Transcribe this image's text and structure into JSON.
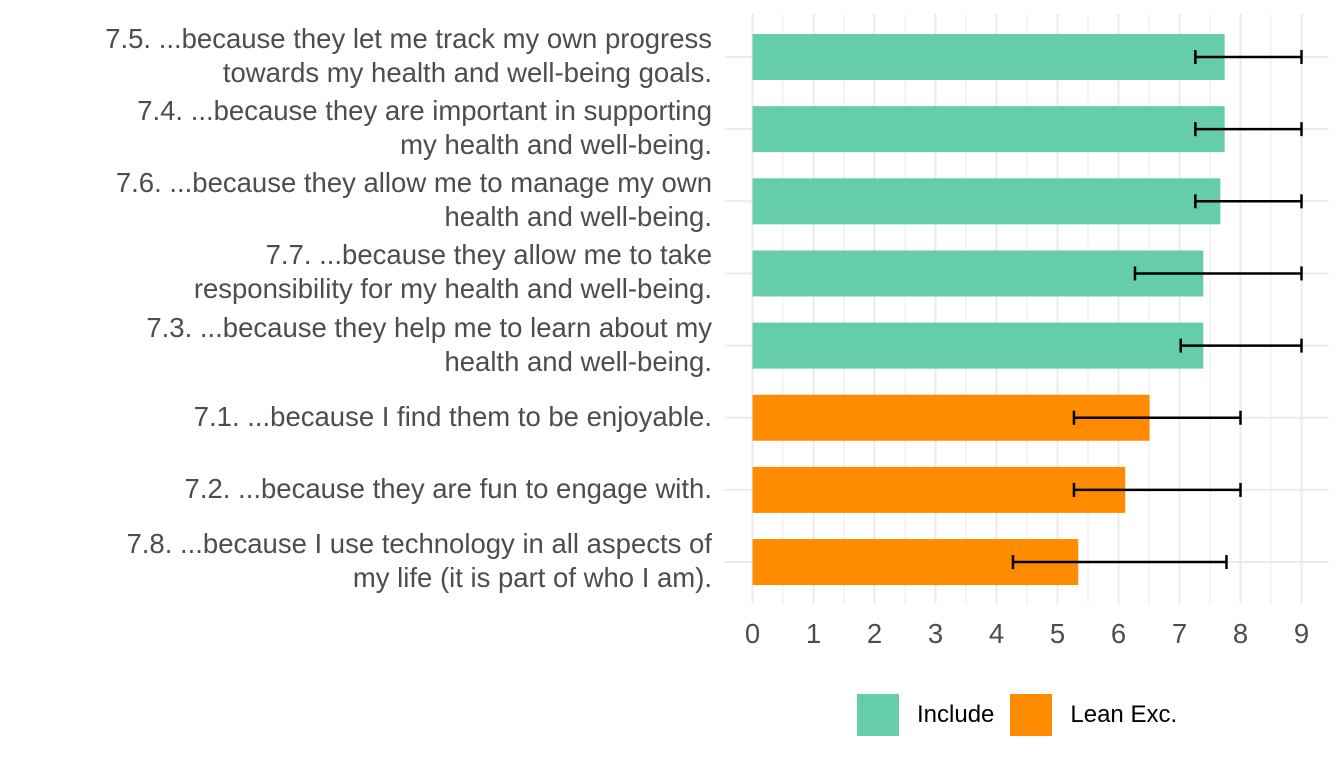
{
  "chart_data": {
    "type": "bar",
    "orientation": "horizontal",
    "title": "",
    "xlabel": "",
    "ylabel": "",
    "xlim": [
      0,
      9
    ],
    "x_ticks": [
      0,
      1,
      2,
      3,
      4,
      5,
      6,
      7,
      8,
      9
    ],
    "grid": true,
    "legend_position": "bottom",
    "legend": [
      {
        "name": "Include",
        "color": "#66CDAA"
      },
      {
        "name": "Lean Exc.",
        "color": "#FF8C00"
      }
    ],
    "categories": [
      {
        "label_lines": [
          "7.5. ...because they let me track my own progress",
          "towards my health and well-being goals."
        ],
        "group": "Include",
        "value": 7.74,
        "error_low": 7.26,
        "error_high": 9.0
      },
      {
        "label_lines": [
          "7.4. ...because they are important in supporting",
          "my health and well-being."
        ],
        "group": "Include",
        "value": 7.74,
        "error_low": 7.26,
        "error_high": 9.0
      },
      {
        "label_lines": [
          "7.6. ...because they allow me to manage my own",
          "health and well-being."
        ],
        "group": "Include",
        "value": 7.67,
        "error_low": 7.26,
        "error_high": 9.0
      },
      {
        "label_lines": [
          "7.7. ...because they allow me to take",
          "responsibility for my health and well-being."
        ],
        "group": "Include",
        "value": 7.39,
        "error_low": 6.27,
        "error_high": 9.0
      },
      {
        "label_lines": [
          "7.3. ...because they help me to learn about my",
          "health and well-being."
        ],
        "group": "Include",
        "value": 7.39,
        "error_low": 7.02,
        "error_high": 9.0
      },
      {
        "label_lines": [
          "7.1. ...because I find them to be enjoyable."
        ],
        "group": "Lean Exc.",
        "value": 6.51,
        "error_low": 5.27,
        "error_high": 8.0
      },
      {
        "label_lines": [
          "7.2. ...because they are fun to engage with."
        ],
        "group": "Lean Exc.",
        "value": 6.11,
        "error_low": 5.27,
        "error_high": 8.0
      },
      {
        "label_lines": [
          "7.8. ...because I use technology in all aspects of",
          "my life (it is part of who I am)."
        ],
        "group": "Lean Exc.",
        "value": 5.34,
        "error_low": 4.27,
        "error_high": 7.77
      }
    ]
  },
  "legend": {
    "include_label": "Include",
    "lean_exc_label": "Lean Exc."
  }
}
